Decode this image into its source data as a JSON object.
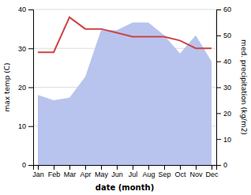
{
  "chart_data": {
    "type": "line",
    "categories": [
      "Jan",
      "Feb",
      "Mar",
      "Apr",
      "May",
      "Jun",
      "Jul",
      "Aug",
      "Sep",
      "Oct",
      "Nov",
      "Dec"
    ],
    "xlabel": "date (month)",
    "ylabel": "max temp (C)",
    "y2label": "med. precipitation (kg/m2)",
    "ylim": [
      0,
      40
    ],
    "yticks": [
      0,
      10,
      20,
      30,
      40
    ],
    "y2lim": [
      0,
      60
    ],
    "y2ticks": [
      0,
      10,
      20,
      30,
      40,
      50,
      60
    ],
    "grid": true,
    "series": [
      {
        "type": "area",
        "axis": "y2",
        "color": "#b8c4ee",
        "values": [
          27,
          25,
          26,
          34,
          52,
          52,
          55,
          55,
          50,
          43,
          50,
          40
        ]
      },
      {
        "type": "line",
        "color": "#cc4444",
        "values": [
          29,
          29,
          38,
          35,
          35,
          34,
          33,
          33,
          33,
          32,
          30,
          30
        ]
      }
    ]
  }
}
